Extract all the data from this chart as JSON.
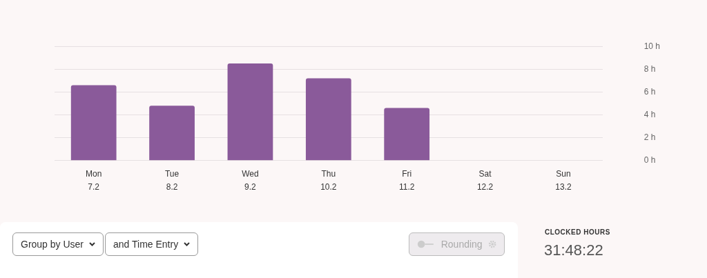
{
  "chart_data": {
    "type": "bar",
    "categories": [
      "Mon\n7.2",
      "Tue\n8.2",
      "Wed\n9.2",
      "Thu\n10.2",
      "Fri\n11.2",
      "Sat\n12.2",
      "Sun\n13.2"
    ],
    "values": [
      6.6,
      4.8,
      8.5,
      7.2,
      4.6,
      0,
      0
    ],
    "color": "#8a5a9a",
    "ylim": [
      0,
      10
    ],
    "yticks": [
      {
        "value": 0,
        "label": "0 h"
      },
      {
        "value": 2,
        "label": "2 h"
      },
      {
        "value": 4,
        "label": "4 h"
      },
      {
        "value": 6,
        "label": "6 h"
      },
      {
        "value": 8,
        "label": "8 h"
      },
      {
        "value": 10,
        "label": "10 h"
      }
    ],
    "grid": "y",
    "legend": false,
    "annotations": [
      "Group by User",
      "and Time Entry",
      "Rounding",
      "CLOCKED HOURS",
      "31:48:22"
    ]
  }
}
